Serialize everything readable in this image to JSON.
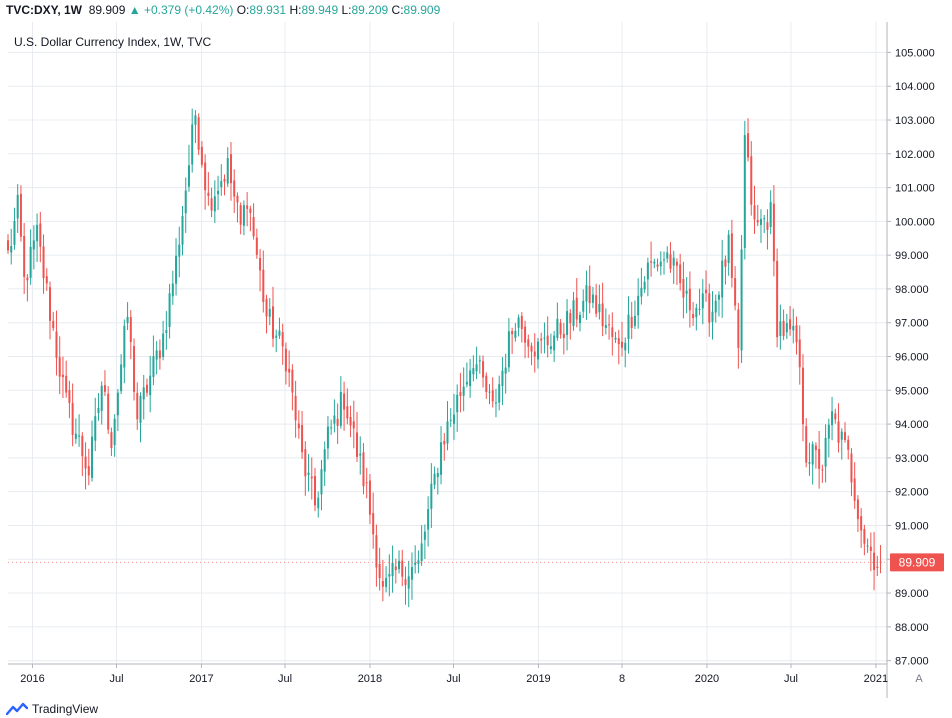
{
  "header": {
    "symbol": "TVC:DXY, 1W",
    "last": "89.909",
    "change": "+0.379 (+0.42%)",
    "open_label": "O:",
    "open": "89.931",
    "high_label": "H:",
    "high": "89.949",
    "low_label": "L:",
    "low": "89.209",
    "close_label": "C:",
    "close": "89.909"
  },
  "brand": {
    "name": "TradingView",
    "icon": "tradingview-logo-icon"
  },
  "auto_scale_label": "A",
  "colors": {
    "up": "#26a69a",
    "down": "#ef5350",
    "grid": "#e8ecf0",
    "axis": "#b2b5be",
    "price_tag": "#ef5350"
  },
  "chart_data": {
    "type": "candlestick",
    "title": "U.S. Dollar Currency Index, 1W, TVC",
    "interval": "1W",
    "ylim": [
      86.9,
      105.9
    ],
    "yticks": [
      "87.000",
      "88.000",
      "89.000",
      "90.000",
      "91.000",
      "92.000",
      "93.000",
      "94.000",
      "95.000",
      "96.000",
      "97.000",
      "98.000",
      "99.000",
      "100.000",
      "101.000",
      "102.000",
      "103.000",
      "104.000",
      "105.000"
    ],
    "xticks": [
      "2016",
      "Jul",
      "2017",
      "Jul",
      "2018",
      "Jul",
      "2019",
      "8",
      "2020",
      "Jul",
      "2021"
    ],
    "xlim": [
      "2015-11-09",
      "2021-01-25"
    ],
    "last_price": "89.909",
    "series": [
      {
        "name": "DXY",
        "anchors": [
          [
            "2015-11-09",
            99.0
          ],
          [
            "2015-12-01",
            100.4
          ],
          [
            "2015-12-14",
            98.2
          ],
          [
            "2016-01-11",
            99.6
          ],
          [
            "2016-02-22",
            96.2
          ],
          [
            "2016-03-14",
            94.6
          ],
          [
            "2016-05-02",
            92.6
          ],
          [
            "2016-05-30",
            95.2
          ],
          [
            "2016-06-20",
            93.6
          ],
          [
            "2016-07-25",
            97.2
          ],
          [
            "2016-08-15",
            94.2
          ],
          [
            "2016-10-10",
            96.6
          ],
          [
            "2016-11-07",
            98.8
          ],
          [
            "2016-12-19",
            103.2
          ],
          [
            "2017-01-16",
            100.6
          ],
          [
            "2017-02-27",
            101.6
          ],
          [
            "2017-03-27",
            99.8
          ],
          [
            "2017-04-10",
            100.8
          ],
          [
            "2017-05-22",
            97.2
          ],
          [
            "2017-07-03",
            96.0
          ],
          [
            "2017-08-07",
            93.0
          ],
          [
            "2017-09-04",
            91.6
          ],
          [
            "2017-10-02",
            93.6
          ],
          [
            "2017-11-06",
            94.8
          ],
          [
            "2017-12-25",
            92.0
          ],
          [
            "2018-01-29",
            89.0
          ],
          [
            "2018-02-26",
            89.6
          ],
          [
            "2018-04-16",
            89.8
          ],
          [
            "2018-06-04",
            93.4
          ],
          [
            "2018-08-13",
            96.0
          ],
          [
            "2018-09-24",
            94.4
          ],
          [
            "2018-11-12",
            97.2
          ],
          [
            "2018-12-31",
            96.2
          ],
          [
            "2019-03-04",
            97.0
          ],
          [
            "2019-04-22",
            97.8
          ],
          [
            "2019-06-24",
            96.2
          ],
          [
            "2019-08-26",
            98.6
          ],
          [
            "2019-10-07",
            99.0
          ],
          [
            "2019-11-18",
            97.6
          ],
          [
            "2020-01-13",
            97.4
          ],
          [
            "2020-02-17",
            99.2
          ],
          [
            "2020-03-09",
            96.0
          ],
          [
            "2020-03-23",
            102.4
          ],
          [
            "2020-04-13",
            99.8
          ],
          [
            "2020-05-18",
            100.2
          ],
          [
            "2020-06-01",
            97.0
          ],
          [
            "2020-07-13",
            96.4
          ],
          [
            "2020-08-03",
            93.2
          ],
          [
            "2020-09-07",
            92.8
          ],
          [
            "2020-09-28",
            94.2
          ],
          [
            "2020-11-02",
            93.0
          ],
          [
            "2020-12-07",
            90.6
          ],
          [
            "2021-01-04",
            89.9
          ],
          [
            "2021-01-11",
            89.909
          ]
        ]
      }
    ]
  }
}
